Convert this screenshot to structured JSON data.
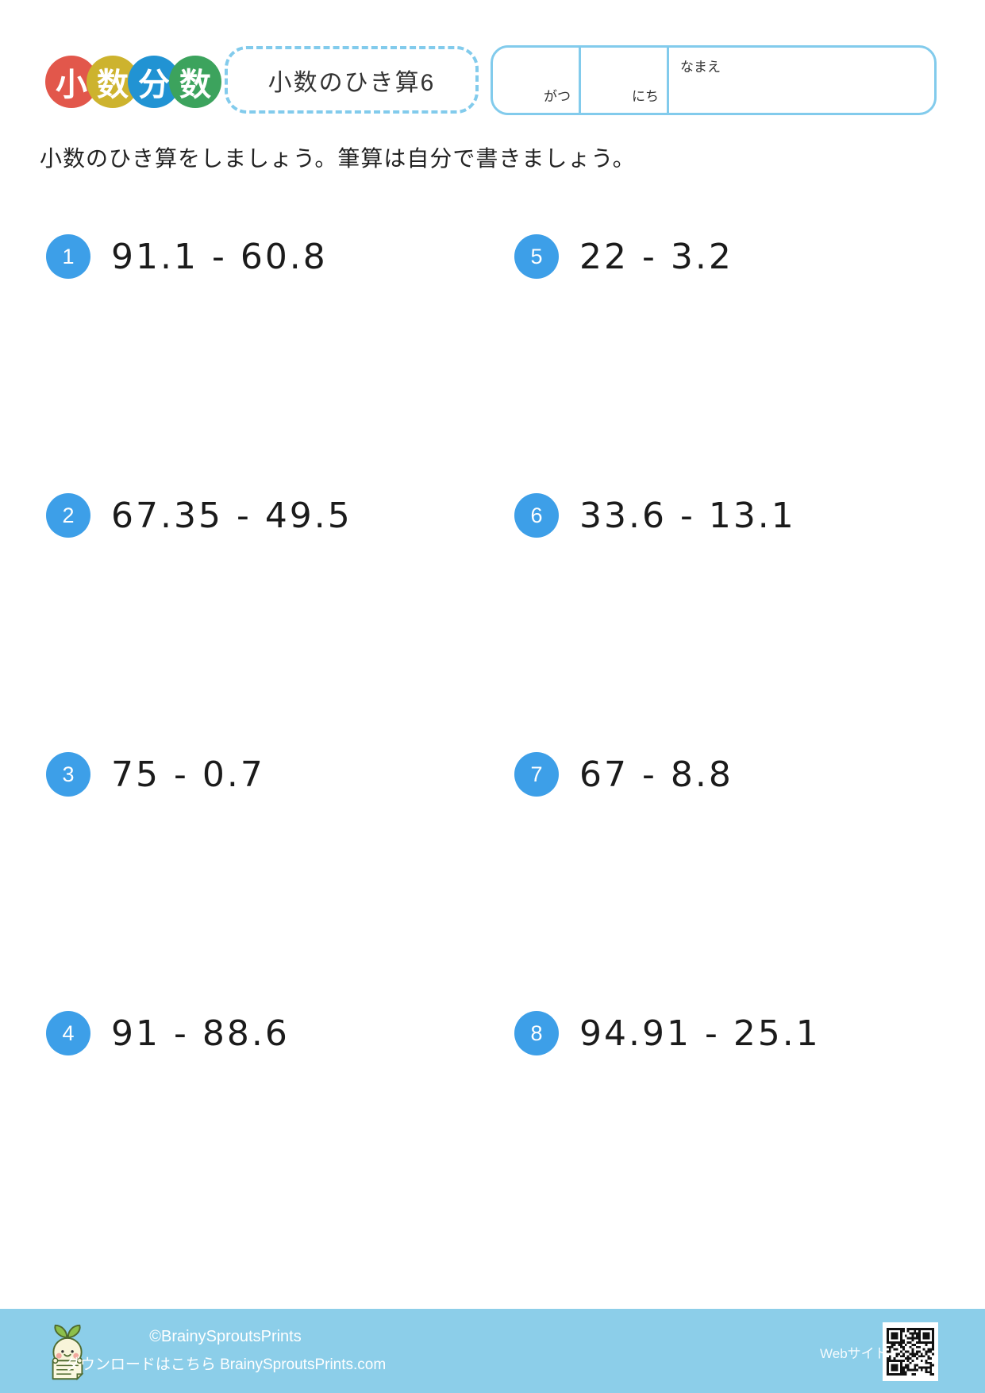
{
  "header": {
    "logo": {
      "circles": [
        {
          "char": "小",
          "color": "#E2574B"
        },
        {
          "char": "数",
          "color": "#CDB32E"
        },
        {
          "char": "分",
          "color": "#2193D3"
        },
        {
          "char": "数",
          "color": "#3CA35D"
        }
      ]
    },
    "worksheet_title": "小数のひき算6",
    "date_name_box": {
      "month_label": "がつ",
      "day_label": "にち",
      "name_label": "なまえ"
    }
  },
  "instruction": "小数のひき算をしましょう。筆算は自分で書きましょう。",
  "problems": [
    {
      "number": "1",
      "expression": "91.1 - 60.8"
    },
    {
      "number": "2",
      "expression": "67.35 - 49.5"
    },
    {
      "number": "3",
      "expression": "75 - 0.7"
    },
    {
      "number": "4",
      "expression": "91 - 88.6"
    },
    {
      "number": "5",
      "expression": "22 - 3.2"
    },
    {
      "number": "6",
      "expression": "33.6 - 13.1"
    },
    {
      "number": "7",
      "expression": "67 - 8.8"
    },
    {
      "number": "8",
      "expression": "94.91 - 25.1"
    }
  ],
  "footer": {
    "copyright": "©BrainySproutsPrints",
    "download_text": "ダウンロードはこちら BrainySproutsPrints.com",
    "website_label": "Webサイト",
    "icons": {
      "mascot": "sprout-mascot-icon",
      "qr": "qr-code-icon"
    }
  },
  "colors": {
    "badge_blue": "#3D9FE8",
    "box_border_blue": "#82CBEC",
    "footer_background": "#8CCEE9",
    "logo_red": "#E2574B",
    "logo_yellow": "#CDB32E",
    "logo_blue": "#2193D3",
    "logo_green": "#3CA35D",
    "text_dark": "#1b1b1b"
  }
}
